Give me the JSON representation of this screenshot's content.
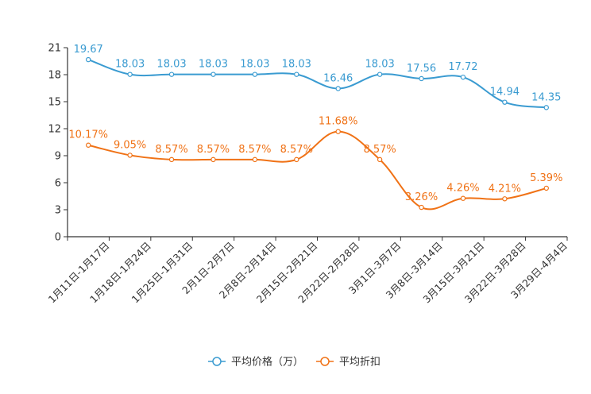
{
  "chart_data": {
    "type": "line",
    "title": "",
    "xlabel": "",
    "ylabel": "",
    "ylim": [
      0,
      21
    ],
    "yticks": [
      0,
      3,
      6,
      9,
      12,
      15,
      18,
      21
    ],
    "grid": false,
    "legend_position": "bottom-center",
    "categories": [
      "1月11日-1月17日",
      "1月18日-1月24日",
      "1月25日-1月31日",
      "2月1日-2月7日",
      "2月8日-2月14日",
      "2月15日-2月21日",
      "2月22日-2月28日",
      "3月1日-3月7日",
      "3月8日-3月14日",
      "3月15日-3月21日",
      "3月22日-3月28日",
      "3月29日-4月4日"
    ],
    "series": [
      {
        "name": "平均价格（万）",
        "color": "#3a9bd1",
        "values": [
          19.67,
          18.03,
          18.03,
          18.03,
          18.03,
          18.03,
          16.46,
          18.03,
          17.56,
          17.72,
          14.94,
          14.35
        ],
        "labels": [
          "19.67",
          "18.03",
          "18.03",
          "18.03",
          "18.03",
          "18.03",
          "16.46",
          "18.03",
          "17.56",
          "17.72",
          "14.94",
          "14.35"
        ]
      },
      {
        "name": "平均折扣",
        "color": "#f07216",
        "values": [
          10.17,
          9.05,
          8.57,
          8.57,
          8.57,
          8.57,
          11.68,
          8.57,
          3.26,
          4.26,
          4.21,
          5.39
        ],
        "labels": [
          "10.17%",
          "9.05%",
          "8.57%",
          "8.57%",
          "8.57%",
          "8.57%",
          "11.68%",
          "8.57%",
          "3.26%",
          "4.26%",
          "4.21%",
          "5.39%"
        ]
      }
    ]
  }
}
